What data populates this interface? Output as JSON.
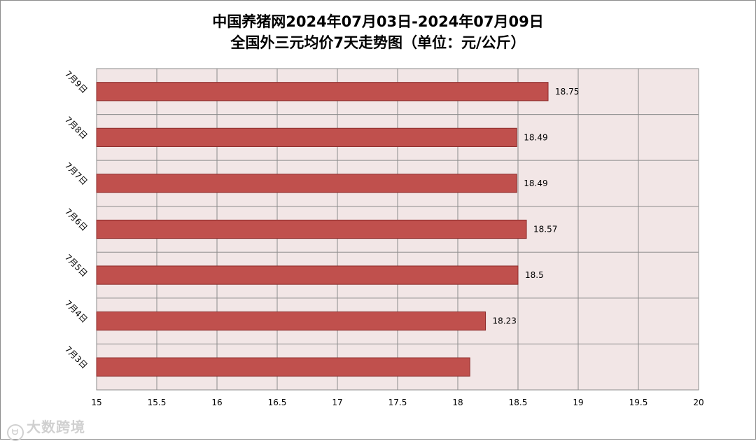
{
  "chart_data": {
    "type": "bar",
    "orientation": "horizontal",
    "title_line1": "中国养猪网2024年07月03日-2024年07月09日",
    "title_line2": "全国外三元均价7天走势图（单位：元/公斤）",
    "categories": [
      "7月3日",
      "7月4日",
      "7月5日",
      "7月6日",
      "7月7日",
      "7月8日",
      "7月9日"
    ],
    "values": [
      18.1,
      18.23,
      18.5,
      18.57,
      18.49,
      18.49,
      18.75
    ],
    "data_labels": [
      "",
      "18.23",
      "18.5",
      "18.57",
      "18.49",
      "18.49",
      "18.75"
    ],
    "x_ticks": [
      "15",
      "15.5",
      "16",
      "16.5",
      "17",
      "17.5",
      "18",
      "18.5",
      "19",
      "19.5",
      "20"
    ],
    "xlim": [
      15,
      20
    ],
    "grid": true,
    "colors": {
      "bar_fill": "#c0504d",
      "bar_stroke": "#8b2b2a",
      "plot_bg": "#f2e6e6",
      "grid": "#8c8c8c"
    }
  },
  "watermark": "大数跨境"
}
